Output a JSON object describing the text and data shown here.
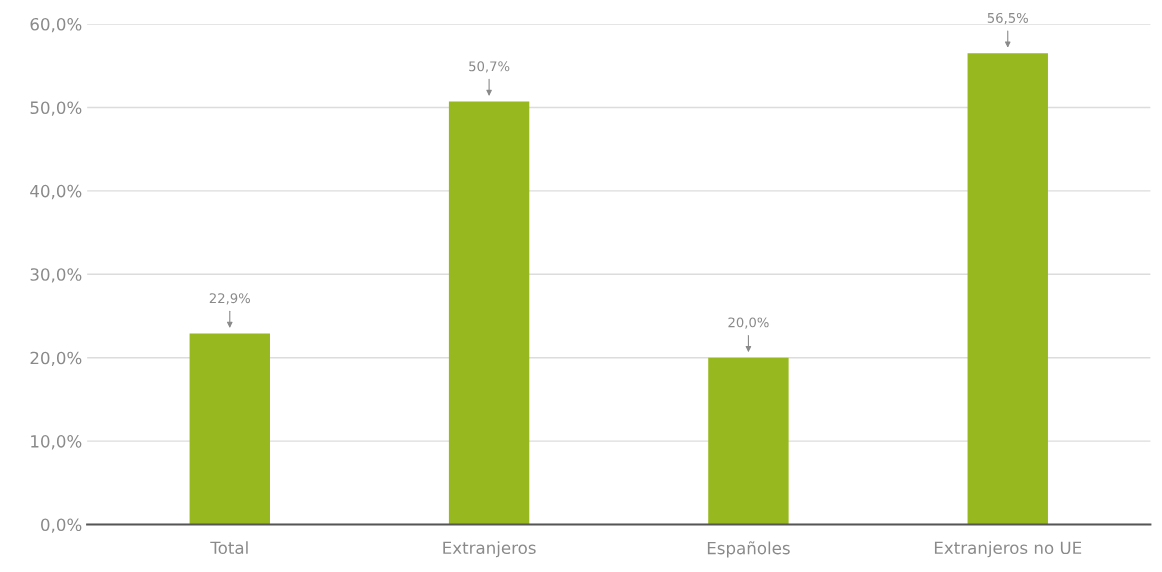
{
  "chart_data": {
    "type": "bar",
    "categories": [
      "Total",
      "Extranjeros",
      "Españoles",
      "Extranjeros no UE"
    ],
    "values": [
      22.9,
      50.7,
      20.0,
      56.5
    ],
    "value_labels": [
      "22,9%",
      "50,7%",
      "20,0%",
      "56,5%"
    ],
    "color": "#97b81e",
    "ylim": [
      0,
      60
    ],
    "yticks": [
      {
        "value": 0,
        "label": "0,0%"
      },
      {
        "value": 10,
        "label": "10,0%"
      },
      {
        "value": 20,
        "label": "20,0%"
      },
      {
        "value": 30,
        "label": "30,0%"
      },
      {
        "value": 40,
        "label": "40,0%"
      },
      {
        "value": 50,
        "label": "50,0%"
      },
      {
        "value": 60,
        "label": "60,0%"
      }
    ],
    "grid": "y"
  }
}
